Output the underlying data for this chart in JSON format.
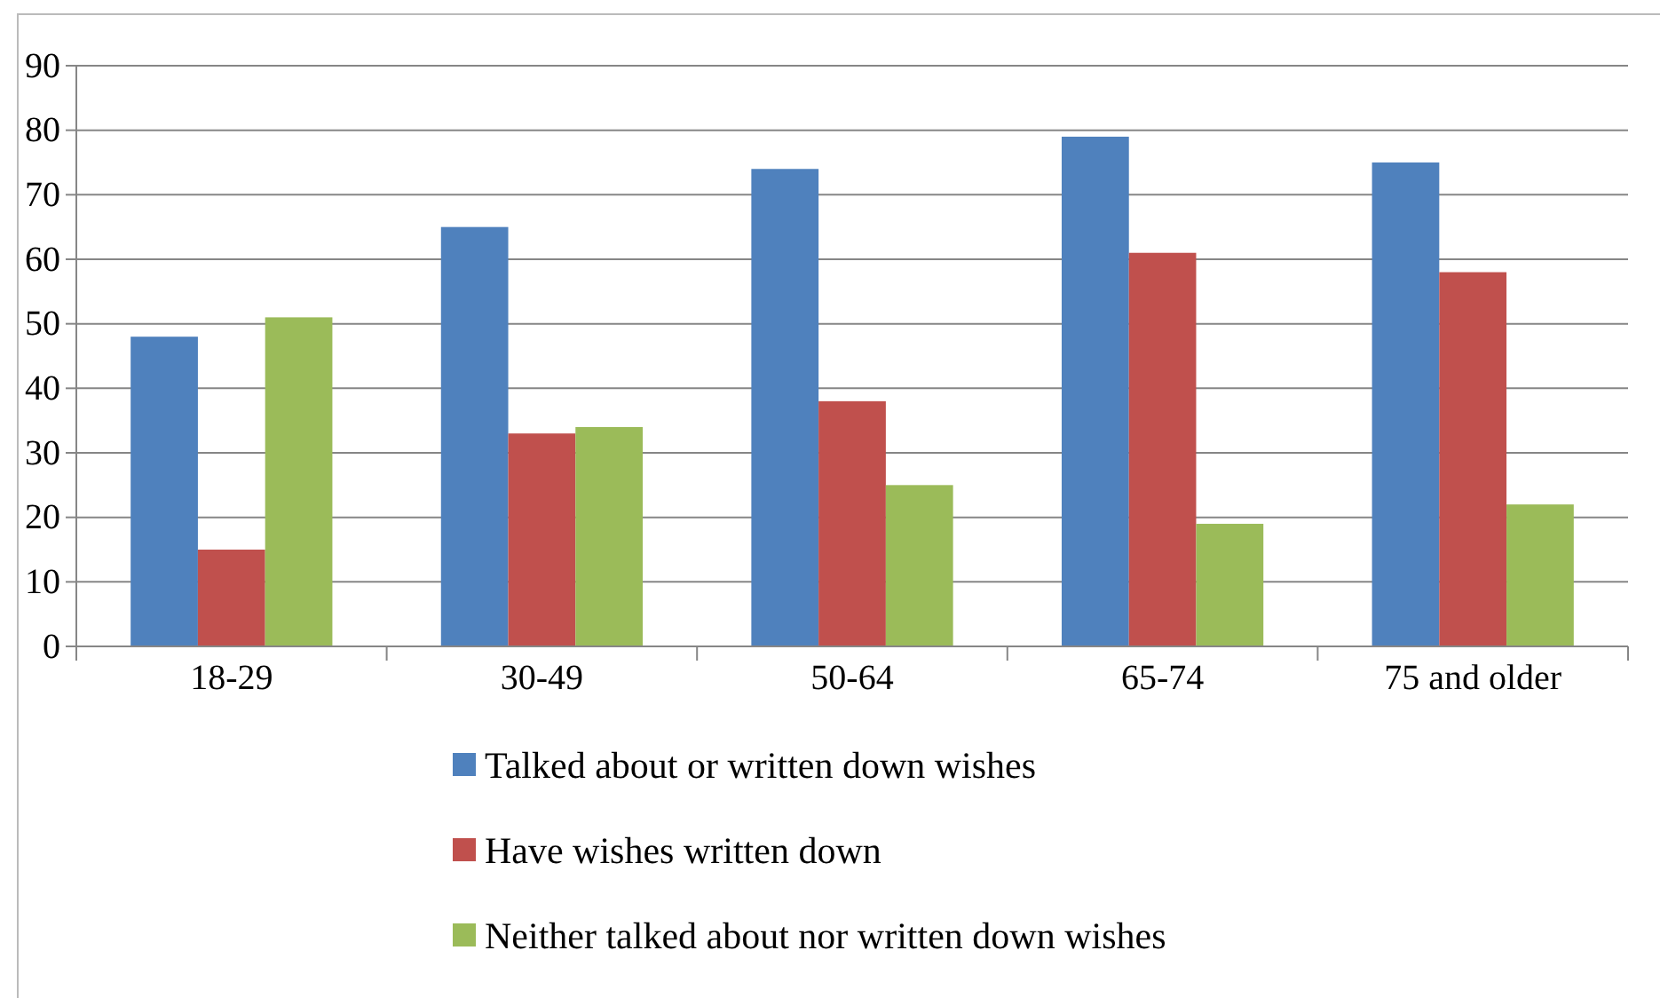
{
  "chart_data": {
    "type": "bar",
    "categories": [
      "18-29",
      "30-49",
      "50-64",
      "65-74",
      "75 and older"
    ],
    "series": [
      {
        "name": "Talked about or written down wishes",
        "color": "#4f81bd",
        "values": [
          48,
          65,
          74,
          79,
          75
        ]
      },
      {
        "name": "Have wishes written down",
        "color": "#c0504d",
        "values": [
          15,
          33,
          38,
          61,
          58
        ]
      },
      {
        "name": "Neither talked about nor written down wishes",
        "color": "#9bbb59",
        "values": [
          51,
          34,
          25,
          19,
          22
        ]
      }
    ],
    "ylim": [
      0,
      90
    ],
    "yticks": [
      0,
      10,
      20,
      30,
      40,
      50,
      60,
      70,
      80,
      90
    ],
    "grid": "y",
    "legend": "bottom"
  }
}
